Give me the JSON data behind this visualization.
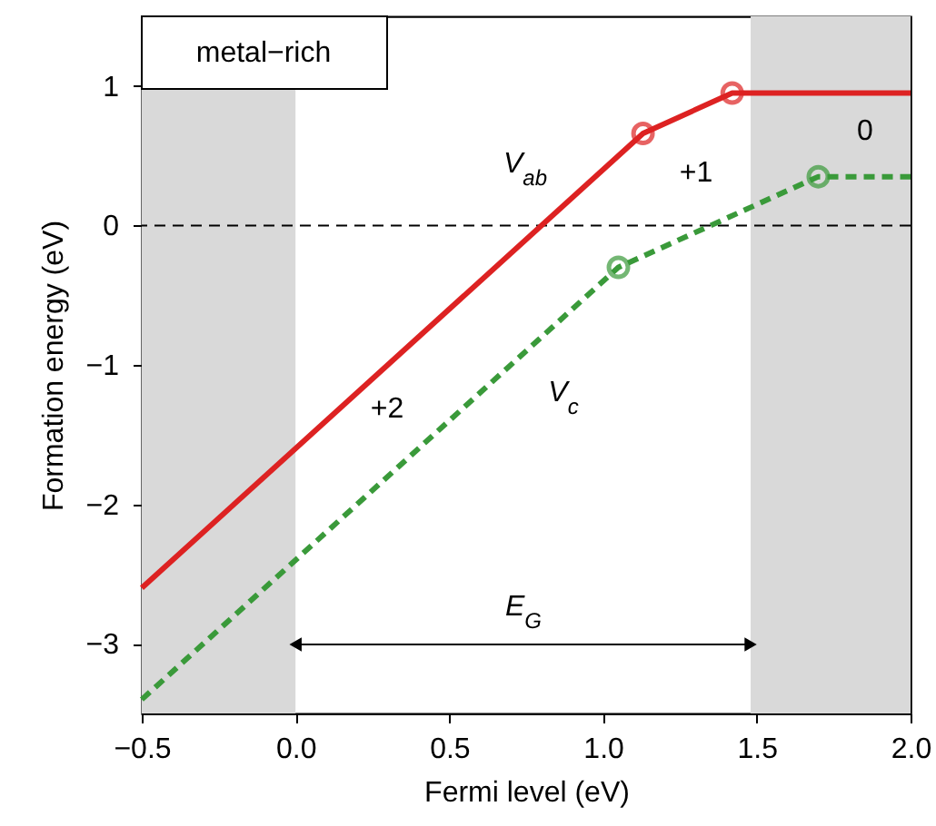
{
  "chart_data": {
    "type": "line",
    "xlabel": "Fermi level (eV)",
    "ylabel": "Formation energy (eV)",
    "xlim": [
      -0.5,
      2.0
    ],
    "ylim": [
      -3.5,
      1.5
    ],
    "xticks": [
      -0.5,
      {
        "value": 0,
        "label": "0.0"
      },
      0.5,
      {
        "value": 1,
        "label": "1.0"
      },
      1.5,
      {
        "value": 2,
        "label": "2.0"
      }
    ],
    "yticks": [
      -3,
      -2,
      -1,
      0,
      1
    ],
    "series": [
      {
        "x": [
          -0.5,
          1.13,
          1.42,
          2.0
        ],
        "values": [
          -2.6,
          0.66,
          0.95,
          0.95
        ],
        "color": "#dd2222",
        "line_style": "solid",
        "marker": "circle"
      },
      {
        "x": [
          -0.5,
          1.05,
          1.7,
          2.0
        ],
        "values": [
          -3.4,
          -0.3,
          0.35,
          0.35
        ],
        "color": "#3a9a3a",
        "line_style": "dashed",
        "marker": "circle"
      }
    ],
    "ref_lines": [
      {
        "axis": "y",
        "value": 0,
        "color": "#000000",
        "line_style": "dashed"
      }
    ],
    "bands": [
      {
        "axis": "x",
        "from": -0.5,
        "to": 0.0,
        "color": "#d9d9d9"
      },
      {
        "axis": "x",
        "from": 1.48,
        "to": 2.0,
        "color": "#d9d9d9"
      }
    ],
    "annotations": [
      "metal−rich",
      "V$_{ab}$",
      "+1",
      "0",
      "+2",
      "V$_{c}$",
      "E$_{G}$"
    ],
    "grid": false
  }
}
